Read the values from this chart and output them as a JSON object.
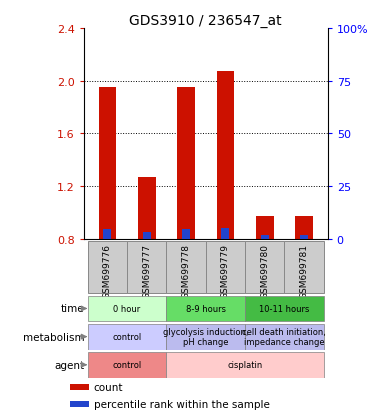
{
  "title": "GDS3910 / 236547_at",
  "samples": [
    "GSM699776",
    "GSM699777",
    "GSM699778",
    "GSM699779",
    "GSM699780",
    "GSM699781"
  ],
  "red_values": [
    1.95,
    1.27,
    1.95,
    2.07,
    0.97,
    0.97
  ],
  "blue_values": [
    0.87,
    0.85,
    0.87,
    0.88,
    0.83,
    0.83
  ],
  "ylim": [
    0.8,
    2.4
  ],
  "yticks": [
    0.8,
    1.2,
    1.6,
    2.0,
    2.4
  ],
  "right_yticks": [
    0,
    25,
    50,
    75,
    100
  ],
  "right_ylabels": [
    "0",
    "25",
    "50",
    "75",
    "100%"
  ],
  "bar_width": 0.45,
  "blue_bar_width": 0.2,
  "red_color": "#cc1100",
  "blue_color": "#2244cc",
  "time_groups": [
    {
      "label": "0 hour",
      "cols": [
        0,
        1
      ],
      "color": "#ccffcc"
    },
    {
      "label": "8-9 hours",
      "cols": [
        2,
        3
      ],
      "color": "#66dd66"
    },
    {
      "label": "10-11 hours",
      "cols": [
        4,
        5
      ],
      "color": "#44bb44"
    }
  ],
  "metabolism_groups": [
    {
      "label": "control",
      "cols": [
        0,
        1
      ],
      "color": "#ccccff"
    },
    {
      "label": "glycolysis induction,\npH change",
      "cols": [
        2,
        3
      ],
      "color": "#bbbbee"
    },
    {
      "label": "cell death initiation,\nimpedance change",
      "cols": [
        4,
        5
      ],
      "color": "#bbbbee"
    }
  ],
  "agent_groups": [
    {
      "label": "control",
      "cols": [
        0,
        1
      ],
      "color": "#ee8888"
    },
    {
      "label": "cisplatin",
      "cols": [
        2,
        3,
        4,
        5
      ],
      "color": "#ffcccc"
    }
  ],
  "row_labels": [
    "time",
    "metabolism",
    "agent"
  ],
  "sample_bg_color": "#cccccc",
  "sample_box_edge": "#888888",
  "legend_items": [
    {
      "color": "#cc1100",
      "label": "count"
    },
    {
      "color": "#2244cc",
      "label": "percentile rank within the sample"
    }
  ]
}
